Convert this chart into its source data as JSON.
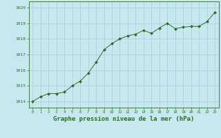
{
  "x": [
    0,
    1,
    2,
    3,
    4,
    5,
    6,
    7,
    8,
    9,
    10,
    11,
    12,
    13,
    14,
    15,
    16,
    17,
    18,
    19,
    20,
    21,
    22,
    23
  ],
  "y": [
    1014.0,
    1014.3,
    1014.5,
    1014.5,
    1014.6,
    1015.0,
    1015.3,
    1015.8,
    1016.5,
    1017.3,
    1017.7,
    1018.0,
    1018.2,
    1018.3,
    1018.55,
    1018.35,
    1018.7,
    1019.0,
    1018.65,
    1018.75,
    1018.8,
    1018.8,
    1019.1,
    1019.7
  ],
  "line_color": "#2d6a2d",
  "marker": "D",
  "marker_size": 2.0,
  "bg_color": "#c8e8f0",
  "grid_color": "#a8ccd8",
  "ylabel_ticks": [
    1014,
    1015,
    1016,
    1017,
    1018,
    1019,
    1020
  ],
  "xlabel": "Graphe pression niveau de la mer (hPa)",
  "xlabel_fontsize": 6.5,
  "xlabel_color": "#2d6a2d",
  "tick_color": "#2d6a2d",
  "ylim": [
    1013.6,
    1020.4
  ],
  "xlim": [
    -0.5,
    23.5
  ]
}
